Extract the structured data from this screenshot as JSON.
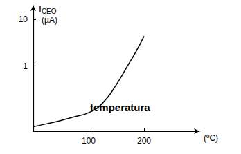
{
  "chart_data": {
    "type": "line",
    "ylabel": "ICEO",
    "ylabel_unit": "(µA)",
    "xlabel": "(ºC)",
    "annotations": [
      "temperatura"
    ],
    "x": [
      0,
      25,
      50,
      75,
      100,
      125,
      150,
      170,
      185,
      200
    ],
    "values": [
      0.05,
      0.058,
      0.068,
      0.082,
      0.1,
      0.16,
      0.4,
      1,
      2,
      4.4
    ],
    "xlim": [
      0,
      300
    ],
    "ylim": [
      0.04,
      20
    ],
    "xticks": [
      100,
      200
    ],
    "yticks": [
      1,
      10
    ],
    "log": "y",
    "grid": false,
    "color": "#000000"
  }
}
